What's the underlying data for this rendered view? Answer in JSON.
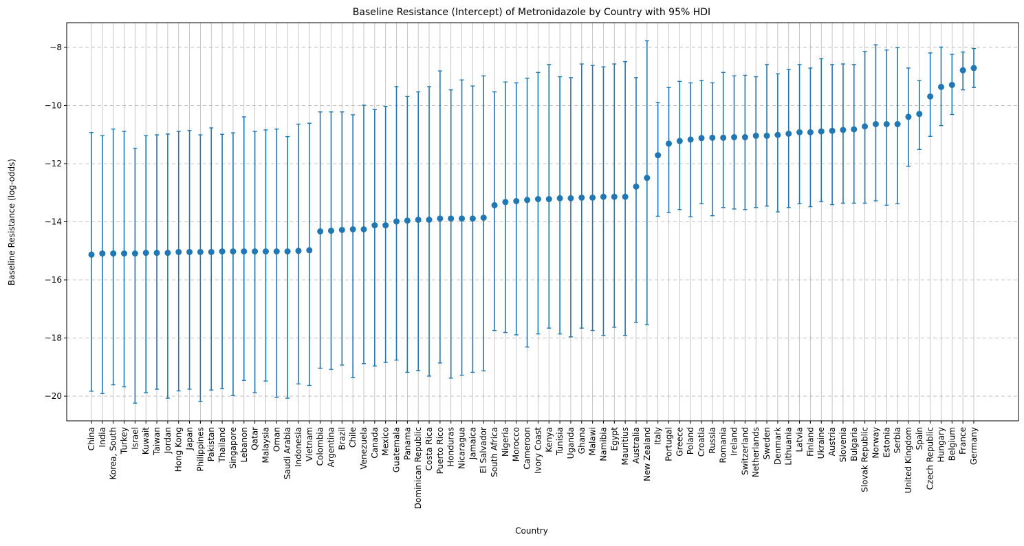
{
  "chart_data": {
    "type": "errorbar",
    "title": "Baseline Resistance (Intercept) of Metronidazole by Country with 95% HDI",
    "xlabel": "Country",
    "ylabel": "Baseline Resistance (log-odds)",
    "ylim": [
      -20.85,
      -7.15
    ],
    "yticks": [
      -20,
      -18,
      -16,
      -14,
      -12,
      -10,
      -8
    ],
    "grid": {
      "x": "solid light gray",
      "y": "dashed light gray"
    },
    "legend": "none",
    "colors": {
      "series": "#1f77b4",
      "grid": "#b0b0b0",
      "axis": "#000000"
    },
    "points": [
      {
        "country": "China",
        "mean": -15.13,
        "low": -19.83,
        "high": -10.93
      },
      {
        "country": "India",
        "mean": -15.09,
        "low": -19.91,
        "high": -11.04
      },
      {
        "country": "Korea, South",
        "mean": -15.09,
        "low": -19.61,
        "high": -10.81
      },
      {
        "country": "Turkey",
        "mean": -15.09,
        "low": -19.68,
        "high": -10.89
      },
      {
        "country": "Israel",
        "mean": -15.09,
        "low": -20.24,
        "high": -11.47
      },
      {
        "country": "Kuwait",
        "mean": -15.07,
        "low": -19.88,
        "high": -11.04
      },
      {
        "country": "Taiwan",
        "mean": -15.07,
        "low": -19.76,
        "high": -11.01
      },
      {
        "country": "Jordan",
        "mean": -15.07,
        "low": -20.07,
        "high": -10.98
      },
      {
        "country": "Hong Kong",
        "mean": -15.04,
        "low": -19.82,
        "high": -10.89
      },
      {
        "country": "Japan",
        "mean": -15.04,
        "low": -19.76,
        "high": -10.86
      },
      {
        "country": "Philippines",
        "mean": -15.04,
        "low": -20.18,
        "high": -11.01
      },
      {
        "country": "Pakistan",
        "mean": -15.04,
        "low": -19.79,
        "high": -10.77
      },
      {
        "country": "Thailand",
        "mean": -15.02,
        "low": -19.74,
        "high": -10.99
      },
      {
        "country": "Singapore",
        "mean": -15.02,
        "low": -19.98,
        "high": -10.94
      },
      {
        "country": "Lebanon",
        "mean": -15.02,
        "low": -19.46,
        "high": -10.39
      },
      {
        "country": "Qatar",
        "mean": -15.02,
        "low": -19.88,
        "high": -10.89
      },
      {
        "country": "Malaysia",
        "mean": -15.02,
        "low": -19.48,
        "high": -10.84
      },
      {
        "country": "Oman",
        "mean": -15.02,
        "low": -20.04,
        "high": -10.81
      },
      {
        "country": "Saudi Arabia",
        "mean": -15.02,
        "low": -20.07,
        "high": -11.07
      },
      {
        "country": "Indonesia",
        "mean": -15.0,
        "low": -19.58,
        "high": -10.64
      },
      {
        "country": "Vietnam",
        "mean": -14.98,
        "low": -19.63,
        "high": -10.61
      },
      {
        "country": "Colombia",
        "mean": -14.33,
        "low": -19.04,
        "high": -10.22
      },
      {
        "country": "Argentina",
        "mean": -14.31,
        "low": -19.08,
        "high": -10.22
      },
      {
        "country": "Brazil",
        "mean": -14.28,
        "low": -18.93,
        "high": -10.22
      },
      {
        "country": "Chile",
        "mean": -14.26,
        "low": -19.36,
        "high": -10.32
      },
      {
        "country": "Venezuela",
        "mean": -14.26,
        "low": -18.88,
        "high": -9.99
      },
      {
        "country": "Canada",
        "mean": -14.12,
        "low": -18.96,
        "high": -10.14
      },
      {
        "country": "Mexico",
        "mean": -14.12,
        "low": -18.84,
        "high": -10.03
      },
      {
        "country": "Guatemala",
        "mean": -13.99,
        "low": -18.76,
        "high": -9.35
      },
      {
        "country": "Panama",
        "mean": -13.96,
        "low": -19.18,
        "high": -9.69
      },
      {
        "country": "Dominican Republic",
        "mean": -13.93,
        "low": -19.12,
        "high": -9.53
      },
      {
        "country": "Costa Rica",
        "mean": -13.93,
        "low": -19.31,
        "high": -9.35
      },
      {
        "country": "Puerto Rico",
        "mean": -13.89,
        "low": -18.86,
        "high": -8.81
      },
      {
        "country": "Honduras",
        "mean": -13.89,
        "low": -19.38,
        "high": -9.46
      },
      {
        "country": "Nicaragua",
        "mean": -13.89,
        "low": -19.28,
        "high": -9.12
      },
      {
        "country": "Jamaica",
        "mean": -13.89,
        "low": -19.18,
        "high": -9.33
      },
      {
        "country": "El Salvador",
        "mean": -13.86,
        "low": -19.13,
        "high": -8.98
      },
      {
        "country": "South Africa",
        "mean": -13.43,
        "low": -17.74,
        "high": -9.53
      },
      {
        "country": "Nigeria",
        "mean": -13.32,
        "low": -17.81,
        "high": -9.19
      },
      {
        "country": "Morocco",
        "mean": -13.29,
        "low": -17.89,
        "high": -9.22
      },
      {
        "country": "Cameroon",
        "mean": -13.25,
        "low": -18.31,
        "high": -9.06
      },
      {
        "country": "Ivory Coast",
        "mean": -13.22,
        "low": -17.86,
        "high": -8.86
      },
      {
        "country": "Kenya",
        "mean": -13.22,
        "low": -17.66,
        "high": -8.59
      },
      {
        "country": "Tunisia",
        "mean": -13.19,
        "low": -17.86,
        "high": -9.01
      },
      {
        "country": "Uganda",
        "mean": -13.19,
        "low": -17.96,
        "high": -9.04
      },
      {
        "country": "Ghana",
        "mean": -13.17,
        "low": -17.66,
        "high": -8.57
      },
      {
        "country": "Malawi",
        "mean": -13.17,
        "low": -17.74,
        "high": -8.62
      },
      {
        "country": "Namibia",
        "mean": -13.14,
        "low": -17.91,
        "high": -8.67
      },
      {
        "country": "Egypt",
        "mean": -13.14,
        "low": -17.63,
        "high": -8.57
      },
      {
        "country": "Mauritius",
        "mean": -13.14,
        "low": -17.91,
        "high": -8.49
      },
      {
        "country": "Australia",
        "mean": -12.79,
        "low": -17.46,
        "high": -9.04
      },
      {
        "country": "New Zealand",
        "mean": -12.49,
        "low": -17.54,
        "high": -7.77
      },
      {
        "country": "Italy",
        "mean": -11.71,
        "low": -13.81,
        "high": -9.9
      },
      {
        "country": "Portugal",
        "mean": -11.31,
        "low": -13.68,
        "high": -9.38
      },
      {
        "country": "Greece",
        "mean": -11.22,
        "low": -13.58,
        "high": -9.17
      },
      {
        "country": "Poland",
        "mean": -11.17,
        "low": -13.83,
        "high": -9.22
      },
      {
        "country": "Croatia",
        "mean": -11.12,
        "low": -13.38,
        "high": -9.14
      },
      {
        "country": "Russia",
        "mean": -11.11,
        "low": -13.79,
        "high": -9.22
      },
      {
        "country": "Romania",
        "mean": -11.11,
        "low": -13.51,
        "high": -8.86
      },
      {
        "country": "Ireland",
        "mean": -11.09,
        "low": -13.56,
        "high": -8.98
      },
      {
        "country": "Switzerland",
        "mean": -11.09,
        "low": -13.58,
        "high": -8.96
      },
      {
        "country": "Netherlands",
        "mean": -11.04,
        "low": -13.51,
        "high": -9.01
      },
      {
        "country": "Sweden",
        "mean": -11.04,
        "low": -13.46,
        "high": -8.59
      },
      {
        "country": "Denmark",
        "mean": -11.01,
        "low": -13.66,
        "high": -8.91
      },
      {
        "country": "Lithuania",
        "mean": -10.97,
        "low": -13.51,
        "high": -8.76
      },
      {
        "country": "Latvia",
        "mean": -10.92,
        "low": -13.38,
        "high": -8.59
      },
      {
        "country": "Finland",
        "mean": -10.92,
        "low": -13.48,
        "high": -8.71
      },
      {
        "country": "Ukraine",
        "mean": -10.89,
        "low": -13.31,
        "high": -8.39
      },
      {
        "country": "Austria",
        "mean": -10.87,
        "low": -13.41,
        "high": -8.59
      },
      {
        "country": "Slovenia",
        "mean": -10.84,
        "low": -13.36,
        "high": -8.57
      },
      {
        "country": "Bulgaria",
        "mean": -10.82,
        "low": -13.36,
        "high": -8.59
      },
      {
        "country": "Slovak Republic",
        "mean": -10.72,
        "low": -13.36,
        "high": -8.14
      },
      {
        "country": "Norway",
        "mean": -10.64,
        "low": -13.28,
        "high": -7.91
      },
      {
        "country": "Estonia",
        "mean": -10.64,
        "low": -13.43,
        "high": -8.09
      },
      {
        "country": "Serbia",
        "mean": -10.64,
        "low": -13.38,
        "high": -8.01
      },
      {
        "country": "United Kingdom",
        "mean": -10.39,
        "low": -12.09,
        "high": -8.71
      },
      {
        "country": "Spain",
        "mean": -10.29,
        "low": -11.51,
        "high": -9.14
      },
      {
        "country": "Czech Republic",
        "mean": -9.69,
        "low": -11.06,
        "high": -8.19
      },
      {
        "country": "Hungary",
        "mean": -9.36,
        "low": -10.69,
        "high": -7.99
      },
      {
        "country": "Belgium",
        "mean": -9.29,
        "low": -10.31,
        "high": -8.24
      },
      {
        "country": "France",
        "mean": -8.79,
        "low": -9.46,
        "high": -8.16
      },
      {
        "country": "Germany",
        "mean": -8.71,
        "low": -9.38,
        "high": -8.04
      }
    ]
  }
}
